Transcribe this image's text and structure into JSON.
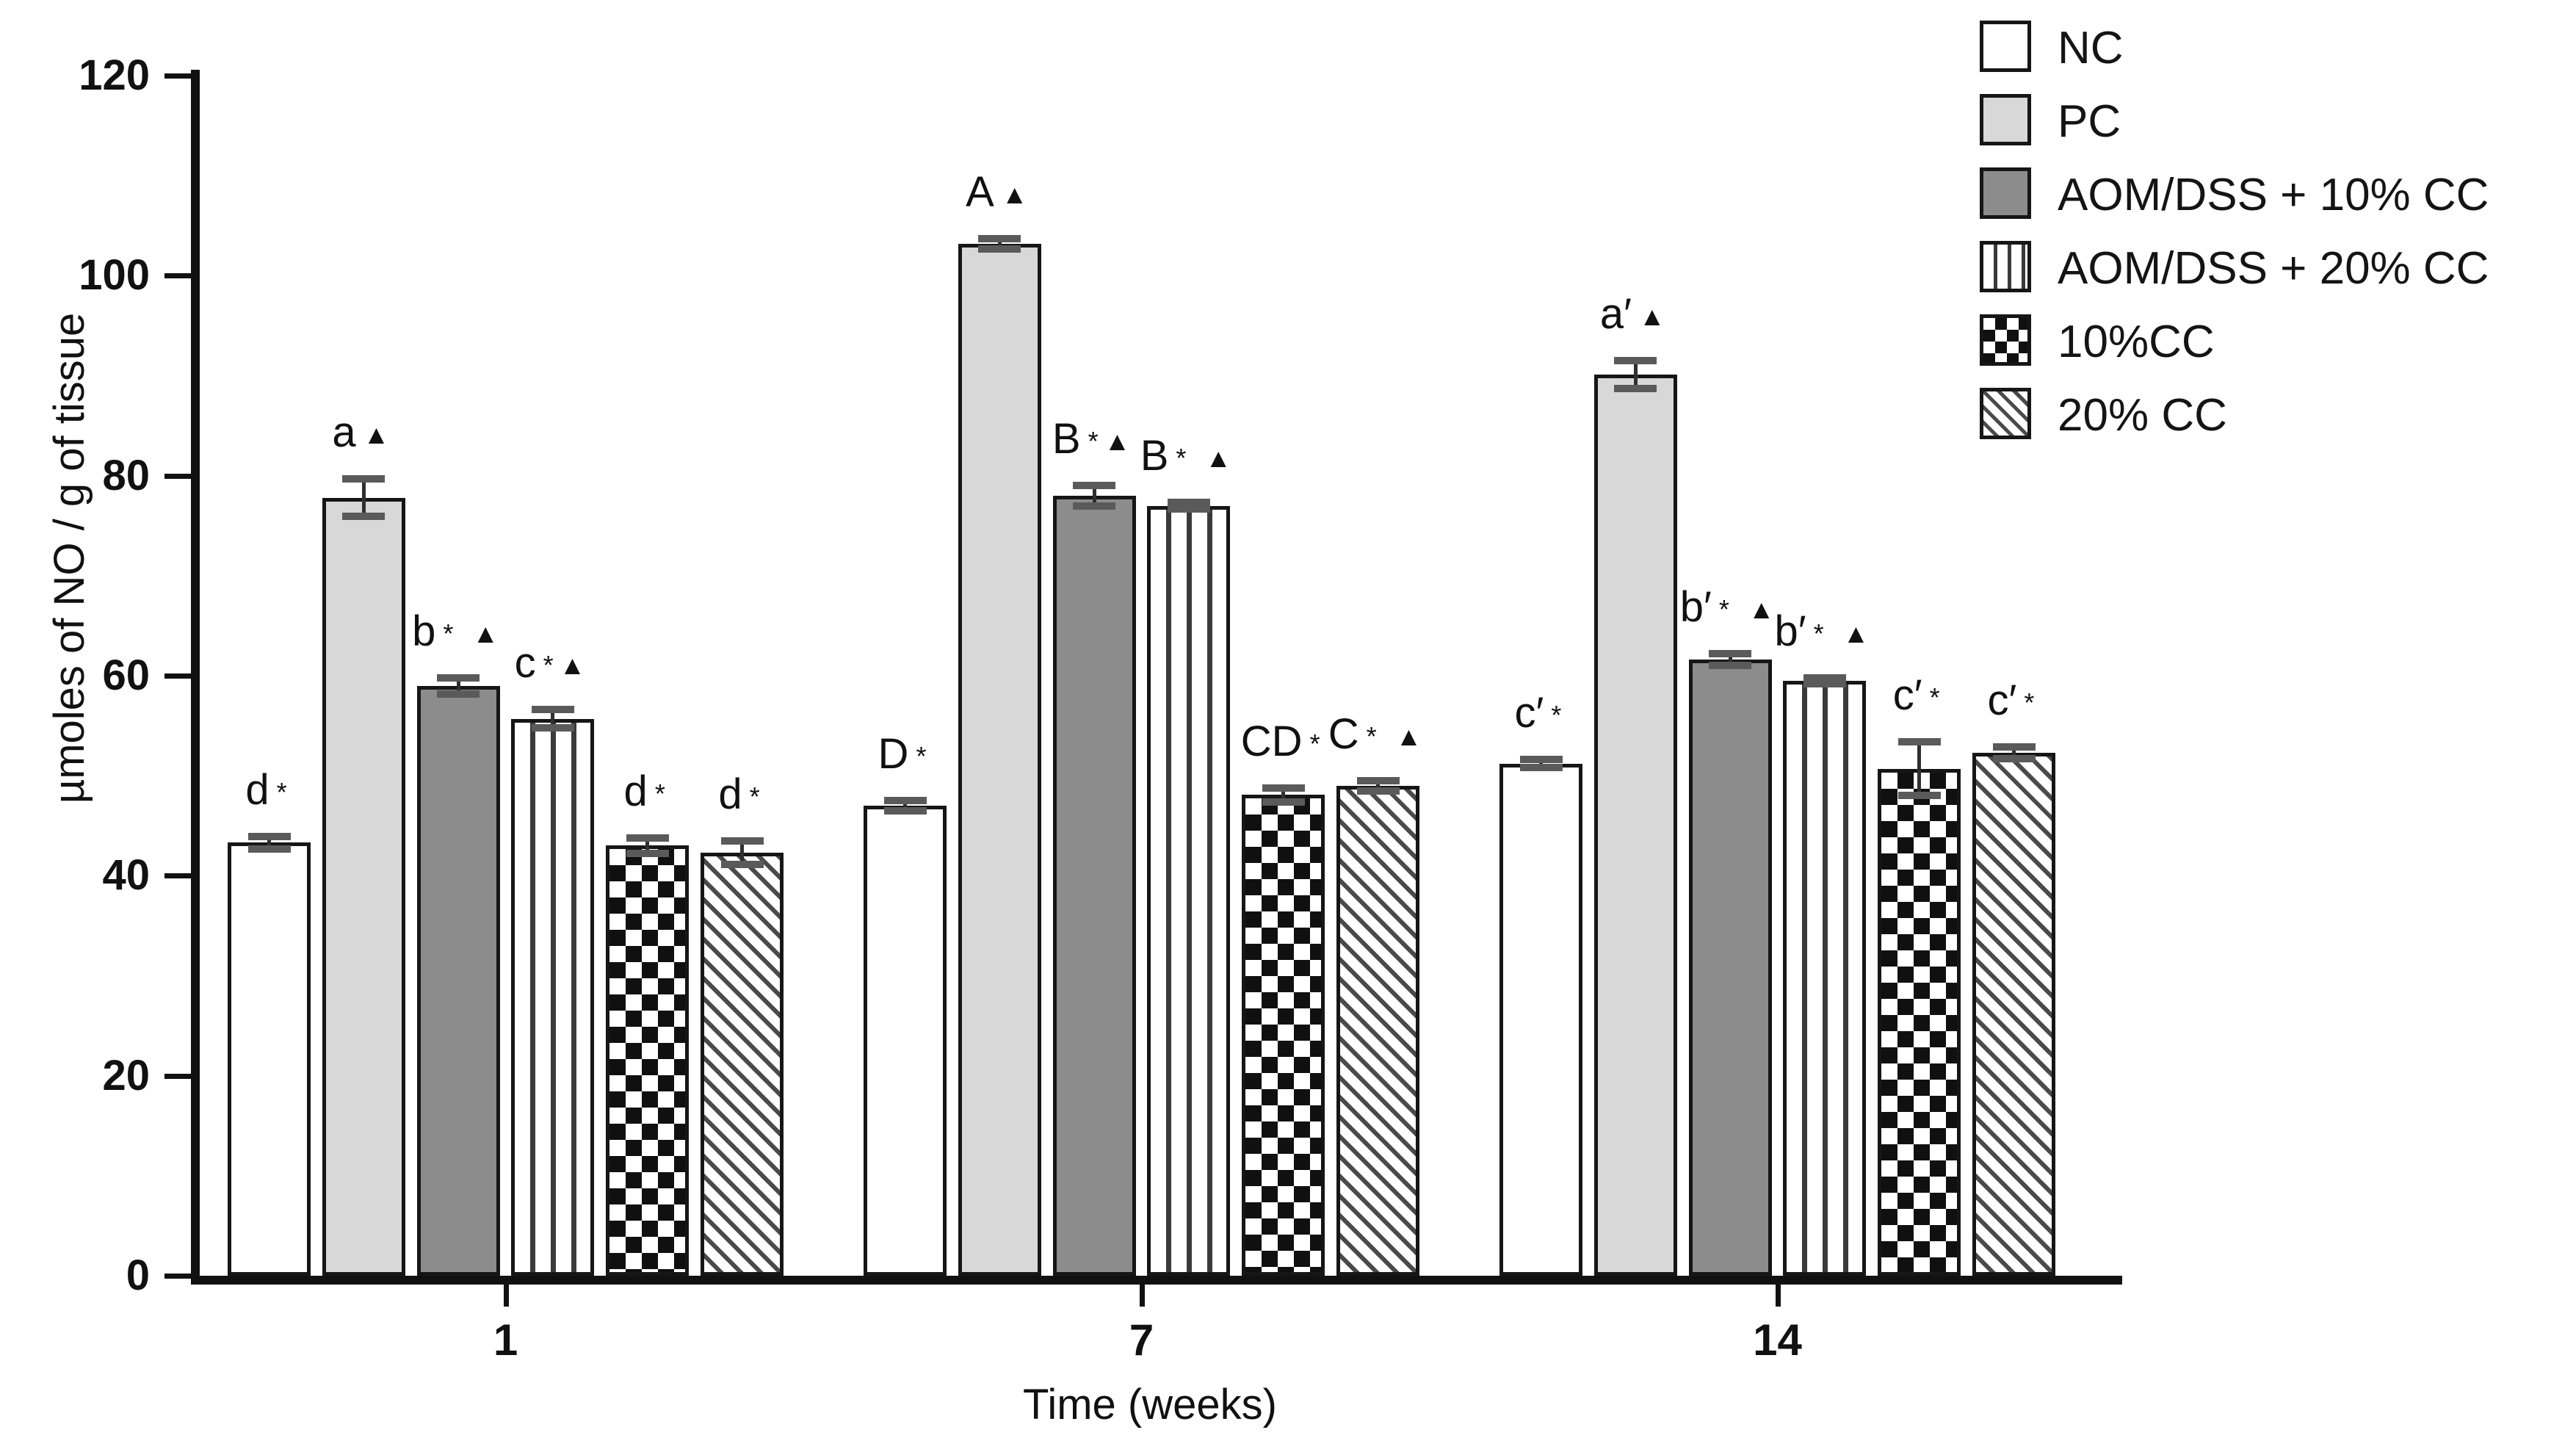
{
  "colors": {
    "ink": "#141414",
    "bar_white": "#ffffff",
    "bar_lightgray": "#d8d8d8",
    "bar_darkgray": "#8c8c8c"
  },
  "legend": {
    "items": [
      {
        "label": "NC",
        "pattern": "white"
      },
      {
        "label": "PC",
        "pattern": "lightgray"
      },
      {
        "label": "AOM/DSS + 10% CC",
        "pattern": "darkgray"
      },
      {
        "label": "AOM/DSS + 20% CC",
        "pattern": "vstripes"
      },
      {
        "label": "10%CC",
        "pattern": "checker"
      },
      {
        "label": "20% CC",
        "pattern": "dstripes"
      }
    ]
  },
  "chart_data": {
    "type": "bar",
    "title": "",
    "xlabel": "Time (weeks)",
    "ylabel": "µmoles of NO / g of tissue",
    "ylim": [
      0,
      120
    ],
    "yticks": [
      0,
      20,
      40,
      60,
      80,
      100,
      120
    ],
    "categories": [
      "1",
      "7",
      "14"
    ],
    "grid": false,
    "legend_position": "upper-right",
    "series": [
      {
        "name": "NC",
        "pattern": "white",
        "values": [
          43.3,
          47.0,
          51.2
        ],
        "errors": [
          0.6,
          0.5,
          0.4
        ],
        "annotations": [
          {
            "letter": "d",
            "marks": "*"
          },
          {
            "letter": "D",
            "marks": "*"
          },
          {
            "letter": "c′",
            "marks": "*"
          }
        ]
      },
      {
        "name": "PC",
        "pattern": "lightgray",
        "values": [
          77.8,
          103.2,
          90.1
        ],
        "errors": [
          1.9,
          0.5,
          1.4
        ],
        "annotations": [
          {
            "letter": "a",
            "marks": "▲"
          },
          {
            "letter": "A",
            "marks": "▲"
          },
          {
            "letter": "a′",
            "marks": "▲"
          }
        ]
      },
      {
        "name": "AOM/DSS + 10% CC",
        "pattern": "darkgray",
        "values": [
          59.0,
          78.0,
          61.6
        ],
        "errors": [
          0.8,
          1.0,
          0.6
        ],
        "annotations": [
          {
            "letter": "b",
            "marks": "* ▲"
          },
          {
            "letter": "B",
            "marks": "*▲"
          },
          {
            "letter": "b′",
            "marks": "* ▲"
          }
        ]
      },
      {
        "name": "AOM/DSS + 20% CC",
        "pattern": "vstripes",
        "values": [
          55.7,
          77.0,
          59.5
        ],
        "errors": [
          0.9,
          0.3,
          0.3
        ],
        "annotations": [
          {
            "letter": "c",
            "marks": "*▲"
          },
          {
            "letter": "B",
            "marks": "* ▲"
          },
          {
            "letter": "b′",
            "marks": "* ▲"
          }
        ]
      },
      {
        "name": "10%CC",
        "pattern": "checker",
        "values": [
          43.0,
          48.1,
          50.7
        ],
        "errors": [
          0.8,
          0.7,
          2.7
        ],
        "annotations": [
          {
            "letter": "d",
            "marks": "*"
          },
          {
            "letter": "CD",
            "marks": "*"
          },
          {
            "letter": "c′",
            "marks": "*"
          }
        ]
      },
      {
        "name": "20% CC",
        "pattern": "dstripes",
        "values": [
          42.3,
          49.0,
          52.3
        ],
        "errors": [
          1.2,
          0.5,
          0.6
        ],
        "annotations": [
          {
            "letter": "d",
            "marks": "*"
          },
          {
            "letter": "C",
            "marks": "* ▲"
          },
          {
            "letter": "c′",
            "marks": "*"
          }
        ]
      }
    ]
  }
}
